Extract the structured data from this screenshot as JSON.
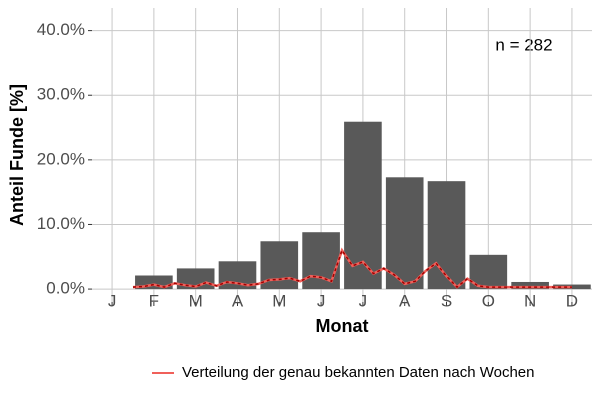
{
  "chart_data": {
    "type": "bar",
    "x_label": "Monat",
    "y_label": "Anteil Funde [%]",
    "annotation": "n = 282",
    "categories": [
      "J",
      "F",
      "M",
      "A",
      "M",
      "J",
      "J",
      "A",
      "S",
      "O",
      "N",
      "D"
    ],
    "values": [
      0,
      2.1,
      3.2,
      4.3,
      7.4,
      8.8,
      25.9,
      17.3,
      16.7,
      5.3,
      1.1,
      0.7
    ],
    "color": "#595959",
    "grid": true,
    "xlim": [
      0.52,
      12.48
    ],
    "ylim": [
      -2,
      43.5
    ],
    "yticks": [
      {
        "value": 0,
        "label": "0.0%"
      },
      {
        "value": 10,
        "label": "10.0%"
      },
      {
        "value": 20,
        "label": "20.0%"
      },
      {
        "value": 30,
        "label": "30.0%"
      },
      {
        "value": 40,
        "label": "40.0%"
      }
    ],
    "line": {
      "name": "Verteilung der genau bekannten Daten nach Wochen",
      "color": "#f0605a",
      "x": [
        1.5,
        1.75,
        2.0,
        2.25,
        2.5,
        2.75,
        3.0,
        3.25,
        3.5,
        3.75,
        4.0,
        4.25,
        4.5,
        4.75,
        5.0,
        5.25,
        5.5,
        5.75,
        6.0,
        6.25,
        6.5,
        6.75,
        7.0,
        7.25,
        7.5,
        7.75,
        8.0,
        8.25,
        8.5,
        8.75,
        9.0,
        9.25,
        9.5,
        9.75,
        10.0,
        10.25,
        10.5,
        10.75,
        11.0,
        11.25,
        11.5,
        11.75,
        12.0
      ],
      "values": [
        0.3,
        0.4,
        0.7,
        0.3,
        0.9,
        0.6,
        0.4,
        1.0,
        0.5,
        1.1,
        0.9,
        0.6,
        0.8,
        1.4,
        1.5,
        1.7,
        1.2,
        2.0,
        1.8,
        1.2,
        6.0,
        3.6,
        4.2,
        2.4,
        3.2,
        2.2,
        0.8,
        1.2,
        2.8,
        4.0,
        2.0,
        0.3,
        1.6,
        0.5,
        0.3,
        0.3,
        0.3,
        0.3,
        0.3,
        0.3,
        0.3,
        0.3,
        0.3
      ]
    }
  }
}
